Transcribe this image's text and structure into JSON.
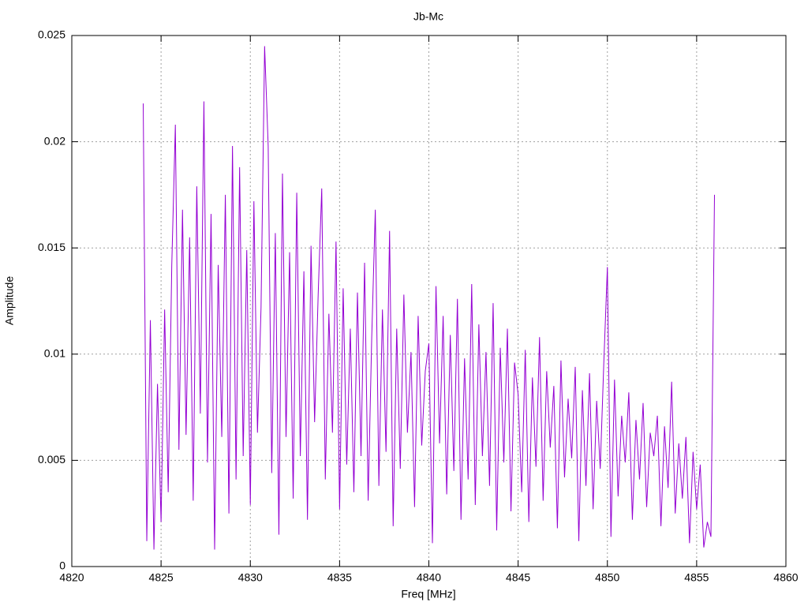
{
  "chart_data": {
    "type": "line",
    "title": "Jb-Mc",
    "x_label": "Freq [MHz]",
    "y_label": "Amplitude",
    "x": [
      4824,
      4824.2,
      4824.4,
      4824.6,
      4824.8,
      4825,
      4825.2,
      4825.4,
      4825.6,
      4825.8,
      4826,
      4826.2,
      4826.4,
      4826.6,
      4826.8,
      4827,
      4827.2,
      4827.4,
      4827.6,
      4827.8,
      4828,
      4828.2,
      4828.4,
      4828.6,
      4828.8,
      4829,
      4829.2,
      4829.4,
      4829.6,
      4829.8,
      4830,
      4830.2,
      4830.4,
      4830.6,
      4830.8,
      4831,
      4831.2,
      4831.4,
      4831.6,
      4831.8,
      4832,
      4832.2,
      4832.4,
      4832.6,
      4832.8,
      4833,
      4833.2,
      4833.4,
      4833.6,
      4833.8,
      4834,
      4834.2,
      4834.4,
      4834.6,
      4834.8,
      4835,
      4835.2,
      4835.4,
      4835.6,
      4835.8,
      4836,
      4836.2,
      4836.4,
      4836.6,
      4836.8,
      4837,
      4837.2,
      4837.4,
      4837.6,
      4837.8,
      4838,
      4838.2,
      4838.4,
      4838.6,
      4838.8,
      4839,
      4839.2,
      4839.4,
      4839.6,
      4839.8,
      4840,
      4840.2,
      4840.4,
      4840.6,
      4840.8,
      4841,
      4841.2,
      4841.4,
      4841.6,
      4841.8,
      4842,
      4842.2,
      4842.4,
      4842.6,
      4842.8,
      4843,
      4843.2,
      4843.4,
      4843.6,
      4843.8,
      4844,
      4844.2,
      4844.4,
      4844.6,
      4844.8,
      4845,
      4845.2,
      4845.4,
      4845.6,
      4845.8,
      4846,
      4846.2,
      4846.4,
      4846.6,
      4846.8,
      4847,
      4847.2,
      4847.4,
      4847.6,
      4847.8,
      4848,
      4848.2,
      4848.4,
      4848.6,
      4848.8,
      4849,
      4849.2,
      4849.4,
      4849.6,
      4849.8,
      4850,
      4850.2,
      4850.4,
      4850.6,
      4850.8,
      4851,
      4851.2,
      4851.4,
      4851.6,
      4851.8,
      4852,
      4852.2,
      4852.4,
      4852.6,
      4852.8,
      4853,
      4853.2,
      4853.4,
      4853.6,
      4853.8,
      4854,
      4854.2,
      4854.4,
      4854.6,
      4854.8,
      4855,
      4855.2,
      4855.4,
      4855.6,
      4855.8,
      4856
    ],
    "series": [
      {
        "color": "#9400d3",
        "values": [
          0.0218,
          0.0012,
          0.0116,
          0.0008,
          0.0086,
          0.0021,
          0.0121,
          0.0035,
          0.0142,
          0.0208,
          0.0055,
          0.0168,
          0.0062,
          0.0155,
          0.0031,
          0.0179,
          0.0072,
          0.0219,
          0.0049,
          0.0166,
          0.0008,
          0.0142,
          0.0061,
          0.0175,
          0.0025,
          0.0198,
          0.0041,
          0.0188,
          0.0052,
          0.0149,
          0.0029,
          0.0172,
          0.0063,
          0.0122,
          0.0245,
          0.0198,
          0.0044,
          0.0157,
          0.0015,
          0.0185,
          0.0061,
          0.0148,
          0.0032,
          0.0176,
          0.0052,
          0.0139,
          0.0022,
          0.0151,
          0.0068,
          0.0128,
          0.0178,
          0.0041,
          0.0119,
          0.0063,
          0.0153,
          0.0027,
          0.0131,
          0.0048,
          0.0112,
          0.0035,
          0.0129,
          0.0052,
          0.0143,
          0.0031,
          0.0108,
          0.0168,
          0.0038,
          0.0121,
          0.0054,
          0.0158,
          0.0019,
          0.0112,
          0.0046,
          0.0128,
          0.0063,
          0.0101,
          0.0028,
          0.0118,
          0.0057,
          0.0092,
          0.0105,
          0.0011,
          0.0132,
          0.0058,
          0.0118,
          0.0034,
          0.0109,
          0.0045,
          0.0126,
          0.0022,
          0.0098,
          0.0041,
          0.0133,
          0.0029,
          0.0114,
          0.0052,
          0.0101,
          0.0038,
          0.0124,
          0.0017,
          0.0103,
          0.0049,
          0.0112,
          0.0026,
          0.0096,
          0.0081,
          0.0035,
          0.0102,
          0.0021,
          0.0089,
          0.0047,
          0.0108,
          0.0031,
          0.0092,
          0.0056,
          0.0085,
          0.0018,
          0.0097,
          0.0042,
          0.0079,
          0.0051,
          0.0094,
          0.0012,
          0.0083,
          0.0038,
          0.0091,
          0.0027,
          0.0078,
          0.0046,
          0.0096,
          0.0141,
          0.0014,
          0.0088,
          0.0033,
          0.0071,
          0.0049,
          0.0082,
          0.0022,
          0.0069,
          0.0041,
          0.0077,
          0.0028,
          0.0063,
          0.0052,
          0.0071,
          0.0019,
          0.0066,
          0.0037,
          0.0087,
          0.0025,
          0.0058,
          0.0032,
          0.0061,
          0.0011,
          0.0054,
          0.0027,
          0.0048,
          0.0009,
          0.0021,
          0.0014,
          0.0175
        ]
      }
    ],
    "xlim": [
      4820,
      4860
    ],
    "xticks": [
      4820,
      4825,
      4830,
      4835,
      4840,
      4845,
      4850,
      4855,
      4860
    ],
    "ylim": [
      0,
      0.025
    ],
    "yticks": [
      0,
      0.005,
      0.01,
      0.015,
      0.02,
      0.025
    ],
    "grid": true
  }
}
